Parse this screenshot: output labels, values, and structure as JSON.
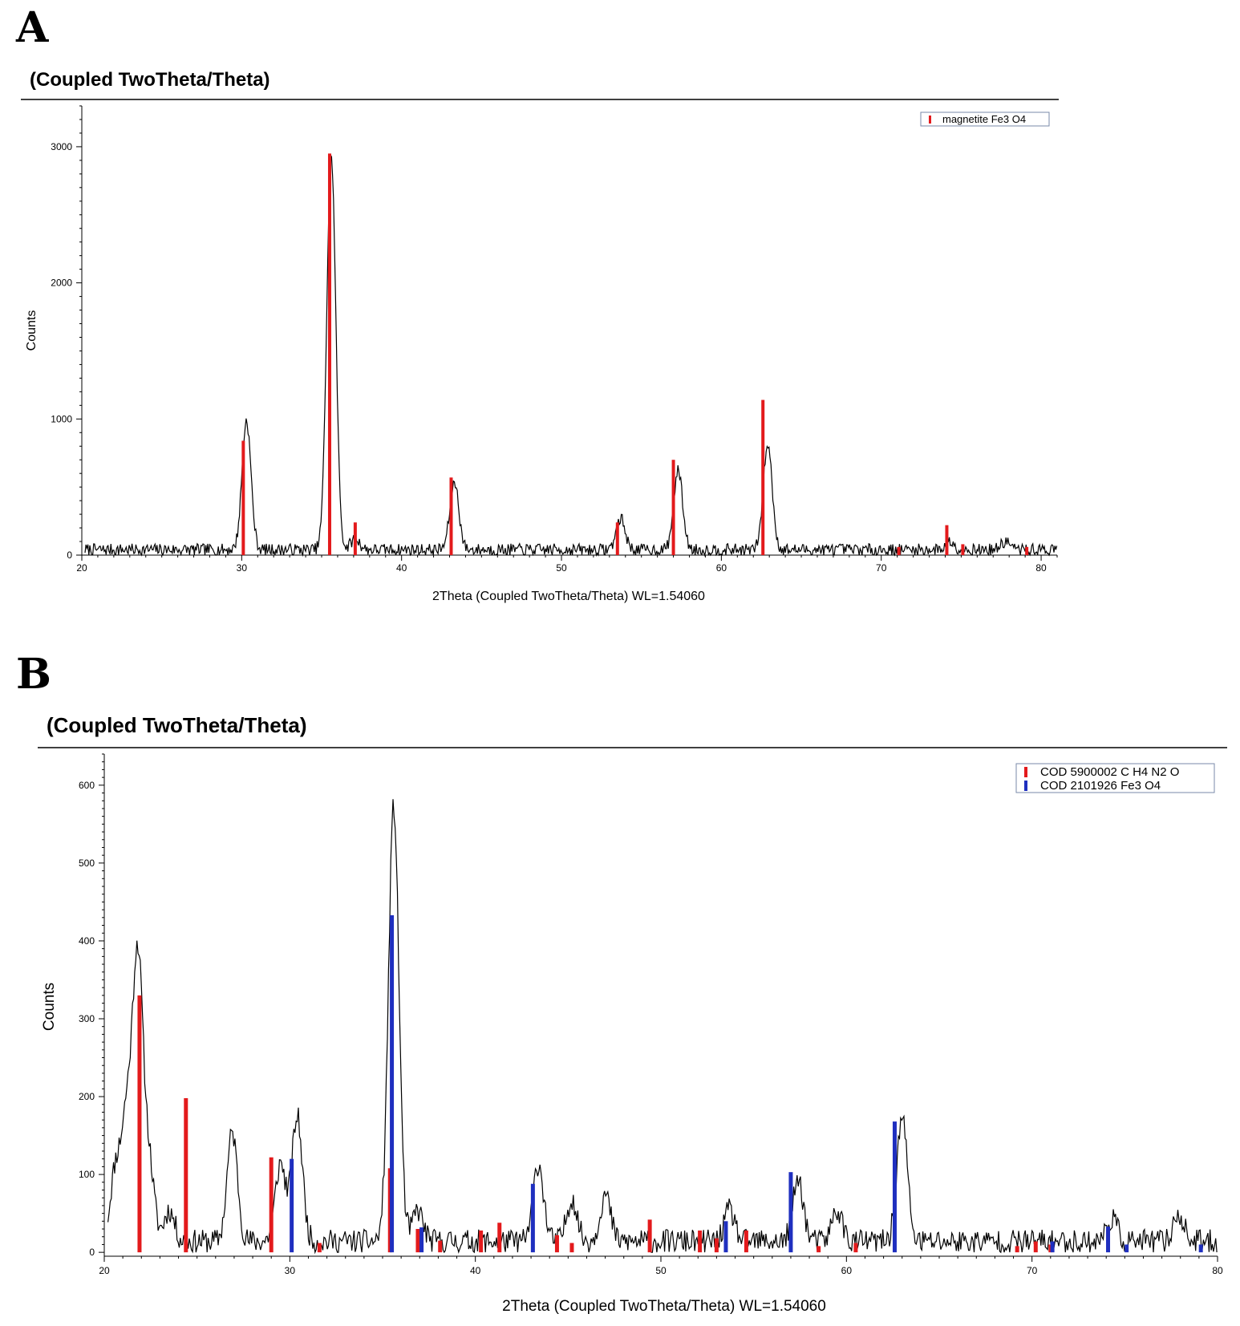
{
  "panels": [
    {
      "letter": "A",
      "title": "(Coupled TwoTheta/Theta)",
      "ylabel": "Counts",
      "xlabel": "2Theta (Coupled TwoTheta/Theta) WL=1.54060",
      "legend": [
        {
          "label": "magnetite Fe3 O4",
          "color": "#e31a1c"
        }
      ]
    },
    {
      "letter": "B",
      "title": "(Coupled TwoTheta/Theta)",
      "ylabel": "Counts",
      "xlabel": "2Theta (Coupled TwoTheta/Theta) WL=1.54060",
      "legend": [
        {
          "label": "COD 5900002 C H4 N2 O",
          "color": "#e31a1c"
        },
        {
          "label": "COD 2101926 Fe3 O4",
          "color": "#1f2fbf"
        }
      ]
    }
  ],
  "chart_data": [
    {
      "type": "line",
      "title": "(Coupled TwoTheta/Theta)",
      "xlabel": "2Theta (Coupled TwoTheta/Theta) WL=1.54060",
      "ylabel": "Counts",
      "xlim": [
        20,
        81
      ],
      "ylim": [
        0,
        3300
      ],
      "xticks": [
        20,
        30,
        40,
        50,
        60,
        70,
        80
      ],
      "yticks": [
        0,
        1000,
        2000,
        3000
      ],
      "grid": false,
      "legend_position": "top-right",
      "pattern": {
        "name": "",
        "color": "#000000",
        "peaks": [
          [
            30.3,
            950
          ],
          [
            35.6,
            2900
          ],
          [
            37.1,
            80
          ],
          [
            43.3,
            500
          ],
          [
            53.7,
            230
          ],
          [
            57.3,
            580
          ],
          [
            62.9,
            770
          ],
          [
            74.3,
            60
          ],
          [
            77.8,
            60
          ]
        ],
        "noise_level": 80,
        "noise_start": 20.2,
        "noise_end": 81
      },
      "reference_series": [
        {
          "name": "magnetite Fe3 O4",
          "color": "#e31a1c",
          "sticks": [
            [
              30.1,
              840
            ],
            [
              35.5,
              2950
            ],
            [
              37.1,
              240
            ],
            [
              43.1,
              570
            ],
            [
              53.5,
              240
            ],
            [
              57.0,
              700
            ],
            [
              62.6,
              1140
            ],
            [
              71.1,
              60
            ],
            [
              74.1,
              220
            ],
            [
              75.1,
              80
            ],
            [
              79.1,
              60
            ]
          ]
        }
      ]
    },
    {
      "type": "line",
      "title": "(Coupled TwoTheta/Theta)",
      "xlabel": "2Theta (Coupled TwoTheta/Theta) WL=1.54060",
      "ylabel": "Counts",
      "xlim": [
        20,
        80
      ],
      "ylim": [
        -5,
        640
      ],
      "xticks": [
        20,
        30,
        40,
        50,
        60,
        70,
        80
      ],
      "yticks": [
        0,
        100,
        200,
        300,
        400,
        500,
        600
      ],
      "grid": false,
      "legend_position": "top-right",
      "pattern": {
        "name": "",
        "color": "#000000",
        "peaks": [
          [
            20.6,
            90
          ],
          [
            21.2,
            150
          ],
          [
            21.8,
            360
          ],
          [
            22.4,
            100
          ],
          [
            23.5,
            40
          ],
          [
            26.9,
            140
          ],
          [
            29.5,
            100
          ],
          [
            30.4,
            160
          ],
          [
            35.6,
            560
          ],
          [
            36.9,
            40
          ],
          [
            43.4,
            100
          ],
          [
            45.2,
            55
          ],
          [
            47.0,
            60
          ],
          [
            53.7,
            40
          ],
          [
            57.4,
            80
          ],
          [
            59.5,
            40
          ],
          [
            63.0,
            160
          ],
          [
            74.3,
            30
          ],
          [
            77.9,
            35
          ]
        ],
        "noise_level": 28,
        "noise_start": 20.2,
        "noise_end": 80
      },
      "reference_series": [
        {
          "name": "COD 5900002 C H4 N2 O",
          "color": "#e31a1c",
          "sticks": [
            [
              21.9,
              330
            ],
            [
              24.4,
              198
            ],
            [
              29.0,
              122
            ],
            [
              31.6,
              12
            ],
            [
              35.4,
              108
            ],
            [
              36.9,
              30
            ],
            [
              38.1,
              15
            ],
            [
              40.3,
              28
            ],
            [
              41.3,
              38
            ],
            [
              44.4,
              22
            ],
            [
              45.2,
              12
            ],
            [
              49.4,
              42
            ],
            [
              52.1,
              28
            ],
            [
              53.0,
              18
            ],
            [
              54.6,
              28
            ],
            [
              58.5,
              8
            ],
            [
              60.5,
              12
            ],
            [
              69.2,
              8
            ],
            [
              70.2,
              14
            ],
            [
              71.0,
              10
            ]
          ]
        },
        {
          "name": "COD 2101926 Fe3 O4",
          "color": "#1f2fbf",
          "sticks": [
            [
              30.1,
              120
            ],
            [
              35.5,
              433
            ],
            [
              37.1,
              32
            ],
            [
              43.1,
              88
            ],
            [
              53.5,
              40
            ],
            [
              57.0,
              103
            ],
            [
              62.6,
              168
            ],
            [
              71.1,
              14
            ],
            [
              74.1,
              33
            ],
            [
              75.1,
              10
            ],
            [
              79.1,
              10
            ]
          ]
        }
      ]
    }
  ]
}
